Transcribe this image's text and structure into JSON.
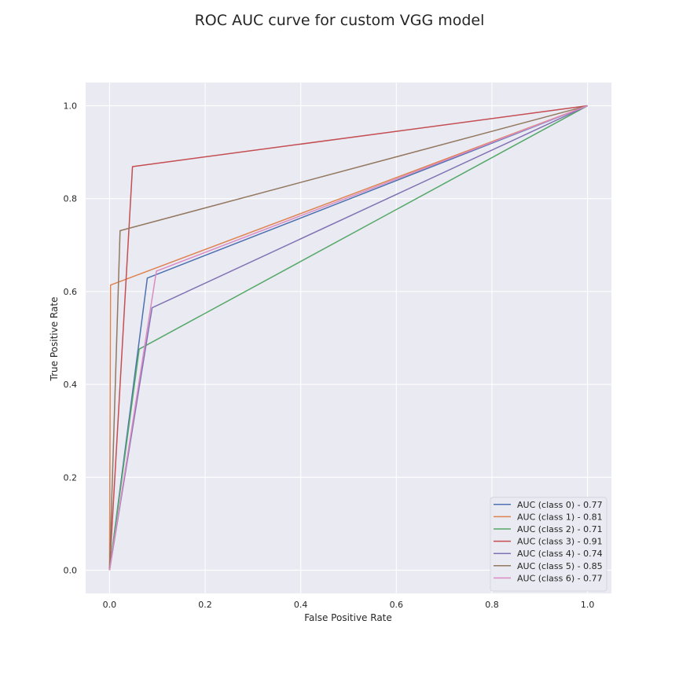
{
  "chart_data": {
    "type": "line",
    "title": "ROC AUC curve for custom VGG model",
    "xlabel": "False Positive Rate",
    "ylabel": "True Positive Rate",
    "xlim": [
      -0.05,
      1.05
    ],
    "ylim": [
      -0.05,
      1.05
    ],
    "x_ticks": [
      "0.0",
      "0.2",
      "0.4",
      "0.6",
      "0.8",
      "1.0"
    ],
    "y_ticks": [
      "0.0",
      "0.2",
      "0.4",
      "0.6",
      "0.8",
      "1.0"
    ],
    "grid": true,
    "legend_position": "lower-right",
    "colors": {
      "plot_background": "#eaeaf2",
      "grid": "#ffffff"
    },
    "series": [
      {
        "name": "AUC (class 0) - 0.77",
        "color": "#4c72b0",
        "x": [
          0.0,
          0.079,
          1.0
        ],
        "y": [
          0.0,
          0.629,
          1.0
        ]
      },
      {
        "name": "AUC (class 1) - 0.81",
        "color": "#dd8452",
        "x": [
          0.0,
          0.002,
          1.0
        ],
        "y": [
          0.0,
          0.614,
          1.0
        ]
      },
      {
        "name": "AUC (class 2) - 0.71",
        "color": "#55a868",
        "x": [
          0.0,
          0.062,
          1.0
        ],
        "y": [
          0.0,
          0.476,
          1.0
        ]
      },
      {
        "name": "AUC (class 3) - 0.91",
        "color": "#c44e52",
        "x": [
          0.0,
          0.048,
          1.0
        ],
        "y": [
          0.0,
          0.869,
          1.0
        ]
      },
      {
        "name": "AUC (class 4) - 0.74",
        "color": "#8172b3",
        "x": [
          0.0,
          0.089,
          1.0
        ],
        "y": [
          0.0,
          0.565,
          1.0
        ]
      },
      {
        "name": "AUC (class 5) - 0.85",
        "color": "#937860",
        "x": [
          0.0,
          0.022,
          1.0
        ],
        "y": [
          0.0,
          0.731,
          1.0
        ]
      },
      {
        "name": "AUC (class 6) - 0.77",
        "color": "#da8bc3",
        "x": [
          0.0,
          0.098,
          1.0
        ],
        "y": [
          0.0,
          0.644,
          1.0
        ]
      }
    ]
  }
}
